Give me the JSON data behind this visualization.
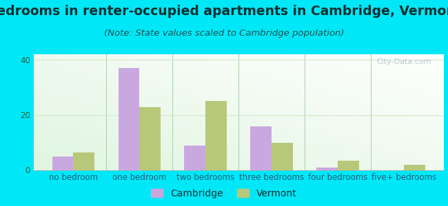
{
  "title": "Bedrooms in renter-occupied apartments in Cambridge, Vermont",
  "subtitle": "(Note: State values scaled to Cambridge population)",
  "categories": [
    "no bedroom",
    "one bedroom",
    "two bedrooms",
    "three bedrooms",
    "four bedrooms",
    "five+ bedrooms"
  ],
  "cambridge_values": [
    5,
    37,
    9,
    16,
    1,
    0
  ],
  "vermont_values": [
    6.5,
    23,
    25,
    10,
    3.5,
    2
  ],
  "cambridge_color": "#c9a8e0",
  "vermont_color": "#b8c87a",
  "background_outer": "#00e8f8",
  "chart_bg_left": "#d8efd0",
  "chart_bg_right": "#f5fcf5",
  "grid_color": "#d0e8c8",
  "ylim": [
    0,
    42
  ],
  "yticks": [
    0,
    20,
    40
  ],
  "bar_width": 0.32,
  "title_fontsize": 13.5,
  "subtitle_fontsize": 9.5,
  "tick_fontsize": 8.5,
  "legend_fontsize": 10,
  "watermark": "City-Data.com"
}
